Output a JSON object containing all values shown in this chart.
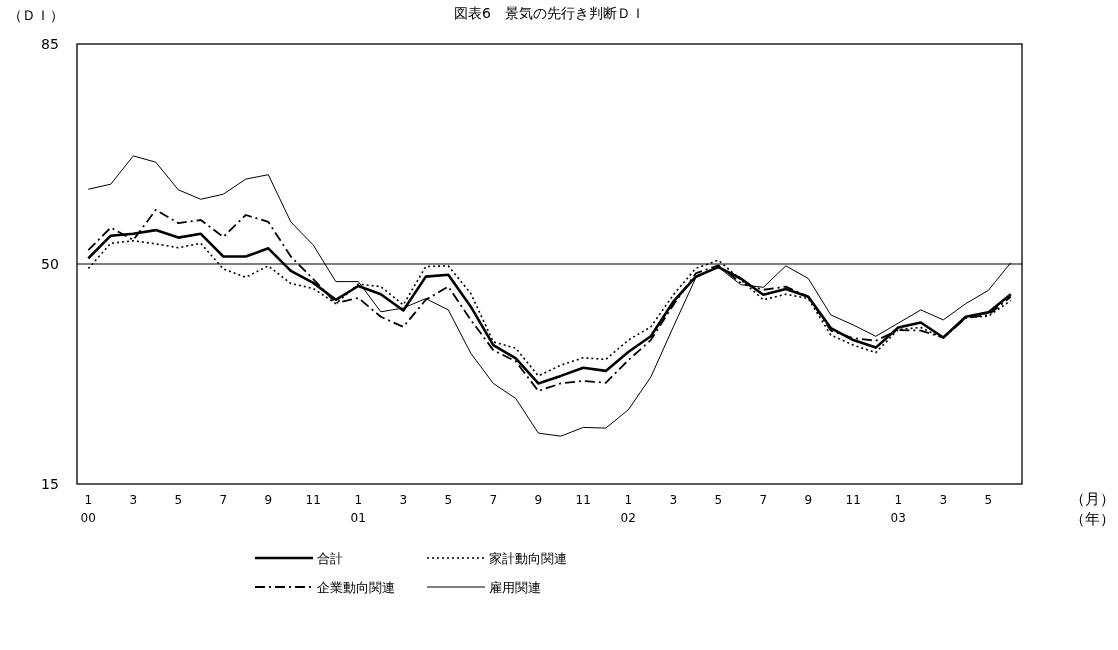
{
  "chart_data": {
    "type": "line",
    "title": "図表6　景気の先行き判断ＤＩ",
    "ylabel": "（ＤＩ）",
    "xlabel": "（月）",
    "annotations": [
      "（年）",
      "00",
      "01",
      "02",
      "03"
    ],
    "categories": [
      "1",
      null,
      "3",
      null,
      "5",
      null,
      "7",
      null,
      "9",
      null,
      "11",
      null,
      "1",
      null,
      "3",
      null,
      "5",
      null,
      "7",
      null,
      "9",
      null,
      "11",
      null,
      "1",
      null,
      "3",
      null,
      "5",
      null,
      "7",
      null,
      "9",
      null,
      "11",
      null,
      "1",
      null,
      "3",
      null,
      "5",
      null
    ],
    "ylim": [
      15,
      85
    ],
    "yticks": [
      15,
      50,
      85
    ],
    "grid": false,
    "legend": "bottom",
    "ref_lines": [
      {
        "axis": "y",
        "value": 50,
        "color": "#000000"
      }
    ],
    "series": [
      {
        "name": "合計",
        "color": "#000000",
        "line_style": "solid",
        "values": [
          50.9,
          54.5,
          54.8,
          55.4,
          54.2,
          54.8,
          51.2,
          51.2,
          52.5,
          48.9,
          47.0,
          44.3,
          46.5,
          45.2,
          42.6,
          48.0,
          48.3,
          43.2,
          37.1,
          35.0,
          31.0,
          32.2,
          33.5,
          33.0,
          36.0,
          38.5,
          44.0,
          48.0,
          49.5,
          47.7,
          45.1,
          46.0,
          44.8,
          39.8,
          37.9,
          36.7,
          39.9,
          40.7,
          38.3,
          41.6,
          42.3,
          45.2
        ]
      },
      {
        "name": "家計動向関連",
        "color": "#000000",
        "line_style": "dotted",
        "values": [
          49.3,
          53.3,
          53.7,
          53.2,
          52.6,
          53.3,
          49.2,
          47.9,
          49.7,
          46.9,
          46.1,
          43.7,
          46.8,
          46.4,
          43.5,
          49.6,
          49.7,
          45.3,
          37.6,
          36.6,
          32.2,
          33.9,
          35.1,
          34.8,
          37.9,
          40.0,
          45.1,
          49.3,
          50.6,
          47.5,
          44.3,
          45.2,
          44.5,
          38.7,
          37.1,
          35.9,
          39.6,
          39.9,
          38.2,
          41.5,
          41.7,
          44.2
        ]
      },
      {
        "name": "企業動向関連",
        "color": "#000000",
        "line_style": "dashdot",
        "values": [
          52.2,
          55.8,
          53.8,
          58.6,
          56.5,
          57.0,
          54.3,
          57.8,
          56.7,
          51.2,
          47.6,
          43.8,
          44.6,
          41.6,
          40.0,
          44.3,
          46.4,
          41.1,
          36.3,
          34.5,
          29.8,
          31.0,
          31.4,
          31.1,
          34.7,
          37.9,
          43.5,
          48.5,
          49.8,
          47.0,
          45.9,
          46.4,
          44.8,
          39.4,
          38.2,
          37.8,
          39.5,
          39.4,
          38.3,
          41.4,
          41.9,
          44.8
        ]
      },
      {
        "name": "雇用関連",
        "color": "#000000",
        "line_style": "solid",
        "values": [
          61.9,
          62.7,
          67.2,
          66.2,
          61.8,
          60.3,
          61.1,
          63.5,
          64.2,
          56.7,
          53.0,
          47.2,
          47.2,
          42.4,
          43.0,
          44.5,
          42.7,
          35.8,
          31.0,
          28.6,
          23.1,
          22.6,
          24.0,
          23.9,
          26.8,
          32.0,
          40.0,
          47.8,
          49.5,
          46.7,
          46.3,
          49.7,
          47.7,
          41.9,
          40.3,
          38.5,
          40.6,
          42.7,
          41.1,
          43.7,
          45.8,
          50.2
        ]
      }
    ]
  }
}
